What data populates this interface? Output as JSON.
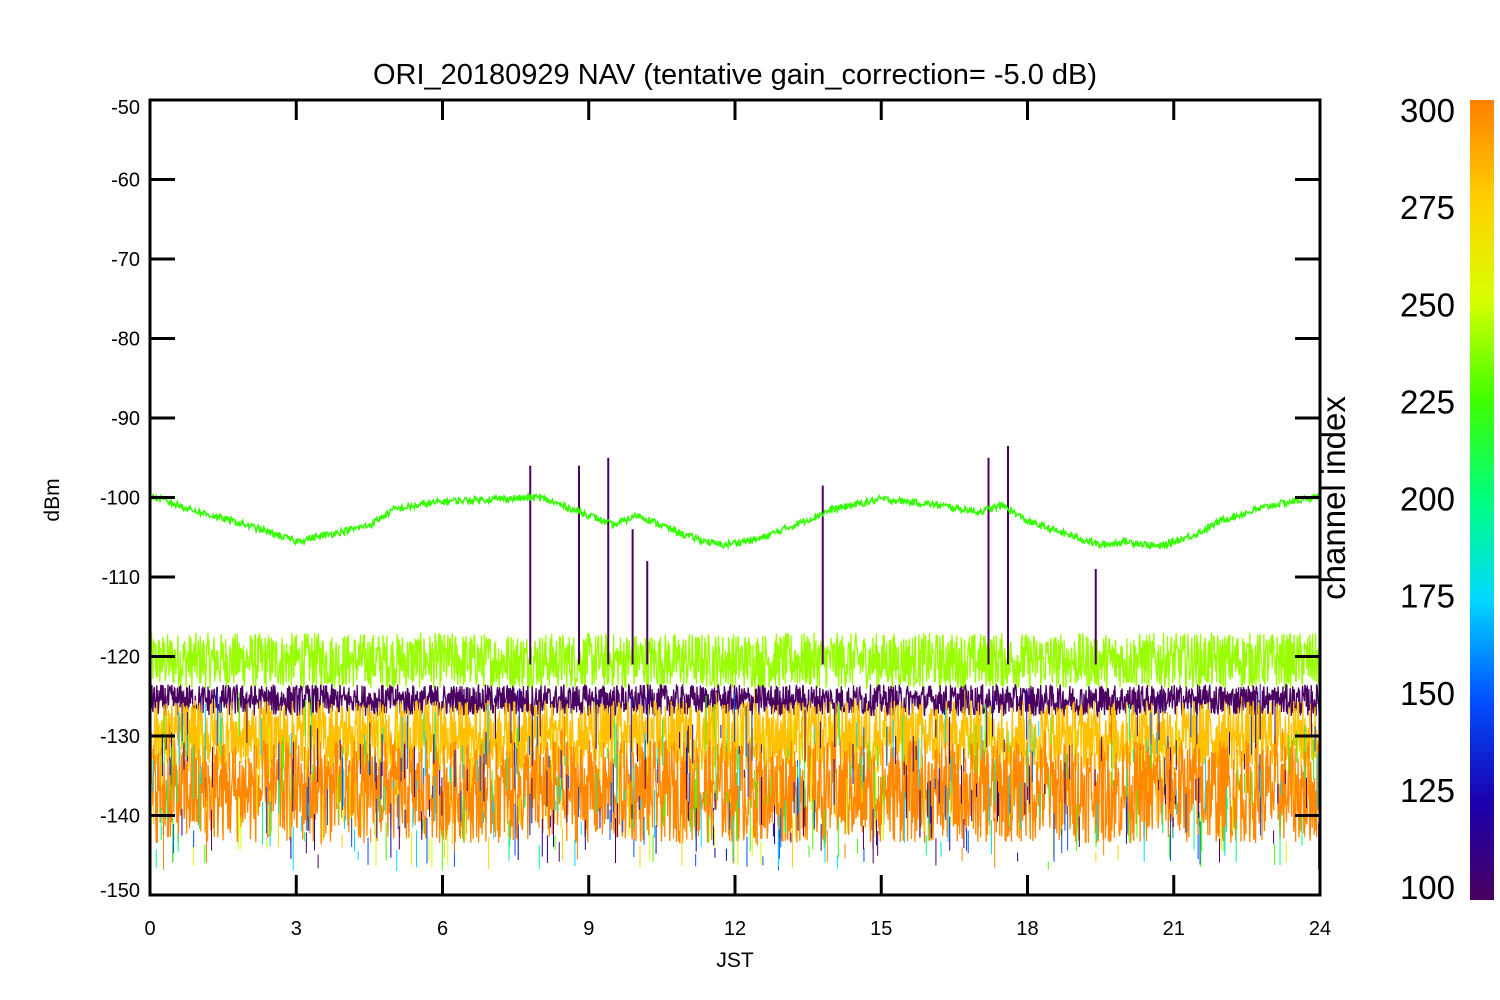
{
  "chart_data": {
    "type": "line",
    "title": "ORI_20180929 NAV (tentative gain_correction= -5.0 dB)",
    "xlabel": "JST",
    "ylabel": "dBm",
    "xlim": [
      0,
      24
    ],
    "ylim": [
      -150,
      -50
    ],
    "x_ticks": [
      "0",
      "3",
      "6",
      "9",
      "12",
      "15",
      "18",
      "21",
      "24"
    ],
    "y_ticks": [
      "-50",
      "-60",
      "-70",
      "-80",
      "-90",
      "-100",
      "-110",
      "-120",
      "-130",
      "-140",
      "-150"
    ],
    "grid": false,
    "colorbar": {
      "label": "channel index",
      "range": [
        100,
        300
      ],
      "ticks": [
        "300",
        "275",
        "250",
        "225",
        "200",
        "175",
        "150",
        "125",
        "100"
      ],
      "colormap": [
        "#4a0060",
        "#1a00b0",
        "#0050ff",
        "#00d8ff",
        "#00ff80",
        "#40ff00",
        "#d8ff00",
        "#ffd000",
        "#ff8000"
      ]
    },
    "series": [
      {
        "color": "#33ff00",
        "x": [
          0,
          0.5,
          1,
          2,
          3,
          4,
          4.5,
          5,
          6,
          7,
          8,
          9,
          9.5,
          10,
          11,
          11.7,
          12.5,
          13,
          14,
          15,
          16,
          17,
          17.5,
          18,
          19,
          19.5,
          20,
          20.7,
          21.5,
          22,
          23,
          24
        ],
        "y": [
          -99.8,
          -100.8,
          -101.8,
          -103.5,
          -105.5,
          -104.2,
          -103.5,
          -101.5,
          -100.5,
          -100.2,
          -100.0,
          -102.2,
          -103.5,
          -102.2,
          -104.8,
          -106.0,
          -105.2,
          -104.0,
          -101.5,
          -100.2,
          -100.8,
          -101.8,
          -101.0,
          -103.0,
          -105.0,
          -106.0,
          -105.5,
          -106.2,
          -104.5,
          -102.8,
          -101.0,
          -99.8
        ]
      },
      {
        "color": "#99ff00",
        "center": -120.5,
        "spread": 3.5
      },
      {
        "color": "#4a0060",
        "center": -125.5,
        "spread": 2.0
      },
      {
        "color": "#ffc000",
        "center": -130,
        "spread": 4.5
      },
      {
        "color": "#ff8800",
        "center": -137,
        "spread": 6.5
      }
    ],
    "spikes": [
      {
        "x": 7.8,
        "y": -96
      },
      {
        "x": 8.8,
        "y": -96
      },
      {
        "x": 9.4,
        "y": -95
      },
      {
        "x": 9.9,
        "y": -104
      },
      {
        "x": 10.2,
        "y": -108
      },
      {
        "x": 13.8,
        "y": -98.5
      },
      {
        "x": 17.2,
        "y": -95
      },
      {
        "x": 17.6,
        "y": -93.5
      },
      {
        "x": 19.4,
        "y": -109
      }
    ]
  }
}
